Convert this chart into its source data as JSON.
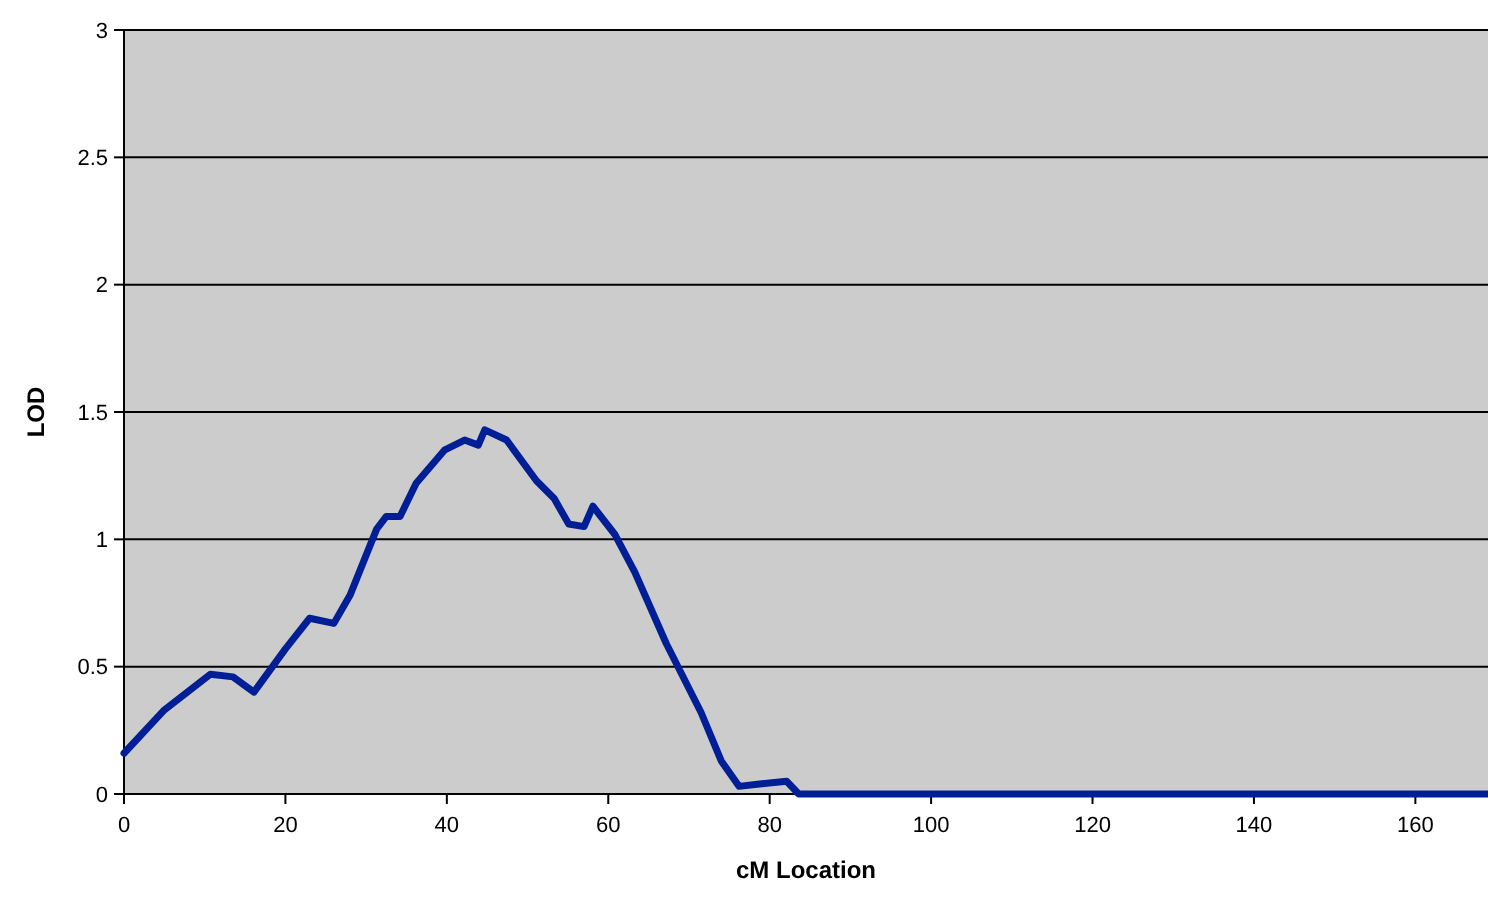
{
  "chart_data": {
    "type": "line",
    "xlabel": "cM Location",
    "ylabel": "LOD",
    "xlim": [
      0,
      169
    ],
    "ylim": [
      0,
      3
    ],
    "xticks": [
      0,
      20,
      40,
      60,
      80,
      100,
      120,
      140,
      160
    ],
    "yticks": [
      0,
      0.5,
      1,
      1.5,
      2,
      2.5,
      3
    ],
    "grid": "y",
    "marker": "none",
    "line_style": "solid",
    "series": [
      {
        "color": "#001e96",
        "x": [
          0,
          5,
          10.7,
          13.5,
          16.1,
          20,
          23,
          26,
          28,
          31.3,
          32.5,
          34.2,
          36.2,
          39.7,
          42.2,
          43.9,
          44.7,
          47.4,
          51.1,
          53.3,
          55.1,
          57,
          58.1,
          60.8,
          63.3,
          67.2,
          71.5,
          74,
          76.2,
          79,
          82.1,
          83.6,
          90,
          169
        ],
        "values": [
          0.16,
          0.33,
          0.47,
          0.46,
          0.4,
          0.57,
          0.69,
          0.67,
          0.78,
          1.04,
          1.09,
          1.09,
          1.22,
          1.35,
          1.39,
          1.37,
          1.43,
          1.39,
          1.23,
          1.16,
          1.06,
          1.05,
          1.13,
          1.02,
          0.87,
          0.59,
          0.32,
          0.13,
          0.03,
          0.04,
          0.05,
          0,
          0,
          0
        ]
      }
    ]
  }
}
